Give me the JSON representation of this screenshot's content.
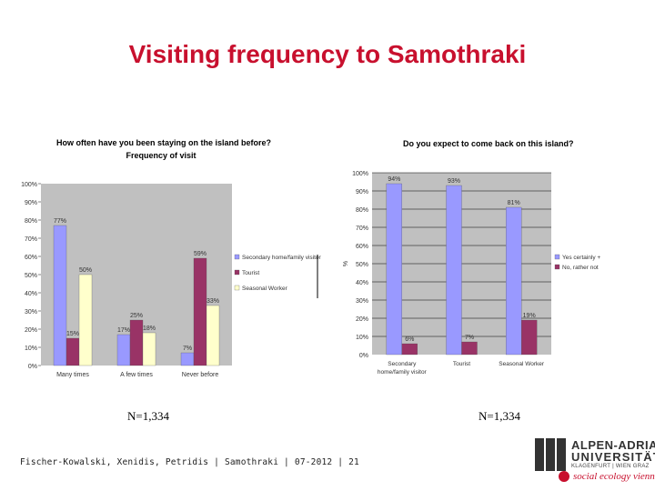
{
  "slide": {
    "title": "Visiting frequency to Samothraki",
    "n_left": "N=1,334",
    "n_right": "N=1,334",
    "footer": "Fischer-Kowalski, Xenidis, Petridis | Samothraki | 07-2012 | 21"
  },
  "logo": {
    "line1": "ALPEN-ADRIA",
    "line2": "UNIVERSITÄT",
    "line3": "KLAGENFURT | WIEN GRAZ",
    "line4": "social ecology vienna"
  },
  "colors": {
    "title": "#c8102e",
    "plot_bg": "#c0c0c0",
    "blue": "#9999ff",
    "maroon": "#993366",
    "cream": "#ffffcc"
  },
  "chart_data": [
    {
      "type": "bar",
      "title": "How often have you been staying on the island before?",
      "subtitle": "Frequency of visit",
      "categories": [
        "Many times",
        "A few times",
        "Never before"
      ],
      "series": [
        {
          "name": "Secondary home/family visitor",
          "values": [
            77,
            17,
            7
          ],
          "labels": [
            "77%",
            "17%",
            "7%"
          ]
        },
        {
          "name": "Tourist",
          "values": [
            15,
            25,
            59
          ],
          "labels": [
            "15%",
            "25%",
            "59%"
          ]
        },
        {
          "name": "Seasonal Worker",
          "values": [
            50,
            18,
            33
          ],
          "labels": [
            "50%",
            "18%",
            "33%"
          ]
        }
      ],
      "ylim": [
        0,
        100
      ],
      "yticks": [
        "0%",
        "10%",
        "20%",
        "30%",
        "40%",
        "50%",
        "60%",
        "70%",
        "80%",
        "90%",
        "100%"
      ],
      "grid": false,
      "legend": "right"
    },
    {
      "type": "bar",
      "title": "Do you expect to come back on this island?",
      "ylabel": "%",
      "categories": [
        "Secondary home/family visitor",
        "Tourist",
        "Seasonal Worker"
      ],
      "series": [
        {
          "name": "Yes certainly + probably",
          "values": [
            94,
            93,
            81
          ],
          "labels": [
            "94%",
            "93%",
            "81%"
          ]
        },
        {
          "name": "No, rather not",
          "values": [
            6,
            7,
            19
          ],
          "labels": [
            "6%",
            "7%",
            "19%"
          ]
        }
      ],
      "ylim": [
        0,
        100
      ],
      "yticks": [
        "0%",
        "10%",
        "20%",
        "30%",
        "40%",
        "50%",
        "60%",
        "70%",
        "80%",
        "90%",
        "100%"
      ],
      "grid": true,
      "legend": "right"
    }
  ]
}
